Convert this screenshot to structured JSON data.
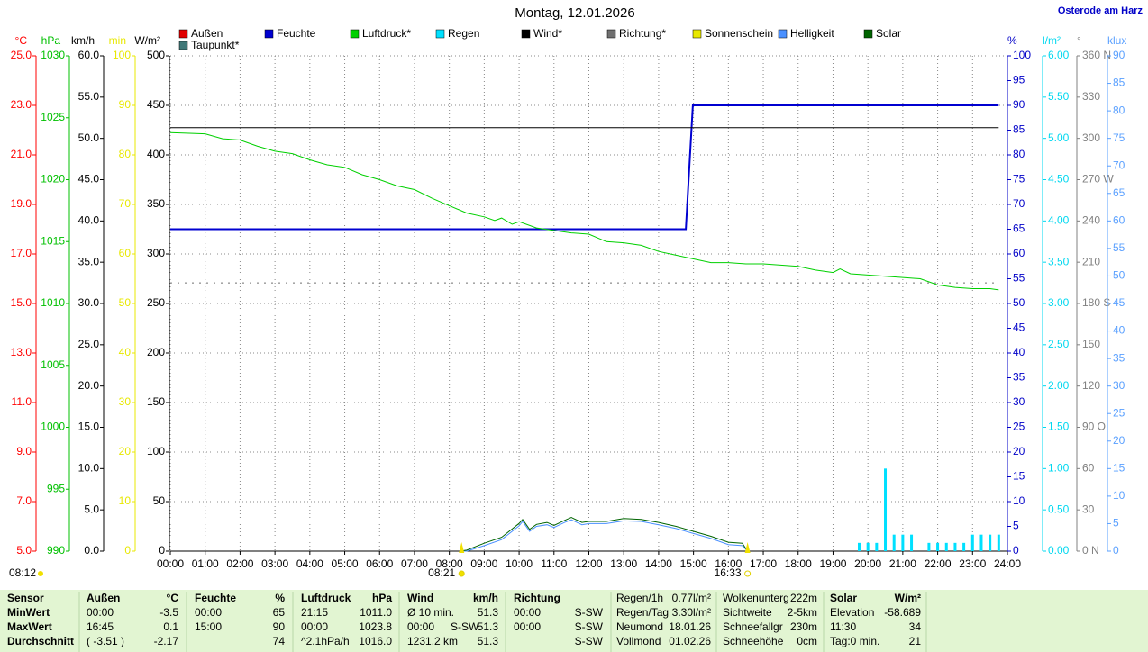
{
  "chart_data": {
    "type": "multi-axis-timeline",
    "title": "Montag, 12.01.2026",
    "location": "Osterode am Harz",
    "xlim": [
      0,
      24
    ],
    "xticks": [
      {
        "value": 0,
        "label": "00:00"
      },
      {
        "value": 1,
        "label": "01:00"
      },
      {
        "value": 2,
        "label": "02:00"
      },
      {
        "value": 3,
        "label": "03:00"
      },
      {
        "value": 4,
        "label": "04:00"
      },
      {
        "value": 5,
        "label": "05:00"
      },
      {
        "value": 6,
        "label": "06:00"
      },
      {
        "value": 7,
        "label": "07:00"
      },
      {
        "value": 8,
        "label": "08:00"
      },
      {
        "value": 9,
        "label": "09:00"
      },
      {
        "value": 10,
        "label": "10:00"
      },
      {
        "value": 11,
        "label": "11:00"
      },
      {
        "value": 12,
        "label": "12:00"
      },
      {
        "value": 13,
        "label": "13:00"
      },
      {
        "value": 14,
        "label": "14:00"
      },
      {
        "value": 15,
        "label": "15:00"
      },
      {
        "value": 16,
        "label": "16:00"
      },
      {
        "value": 17,
        "label": "17:00"
      },
      {
        "value": 18,
        "label": "18:00"
      },
      {
        "value": 19,
        "label": "19:00"
      },
      {
        "value": 20,
        "label": "20:00"
      },
      {
        "value": 21,
        "label": "21:00"
      },
      {
        "value": 22,
        "label": "22:00"
      },
      {
        "value": 23,
        "label": "23:00"
      },
      {
        "value": 24,
        "label": "24:00"
      }
    ],
    "grid": true,
    "y_axes": [
      {
        "label": "°C",
        "side": "left",
        "color": "#ff0000",
        "ylim": [
          5,
          25
        ],
        "yticks": [
          {
            "value": 5,
            "label": "5.0"
          },
          {
            "value": 7,
            "label": "7.0"
          },
          {
            "value": 9,
            "label": "9.0"
          },
          {
            "value": 11,
            "label": "11.0"
          },
          {
            "value": 13,
            "label": "13.0"
          },
          {
            "value": 15,
            "label": "15.0"
          },
          {
            "value": 17,
            "label": "17.0"
          },
          {
            "value": 19,
            "label": "19.0"
          },
          {
            "value": 21,
            "label": "21.0"
          },
          {
            "value": 23,
            "label": "23.0"
          },
          {
            "value": 25,
            "label": "25.0"
          }
        ]
      },
      {
        "label": "hPa",
        "side": "left",
        "color": "#00c000",
        "ylim": [
          990,
          1030
        ],
        "yticks": [
          990,
          995,
          1000,
          1005,
          1010,
          1015,
          1020,
          1025,
          1030
        ]
      },
      {
        "label": "km/h",
        "side": "left",
        "color": "#000000",
        "ylim": [
          0,
          60
        ],
        "yticks": [
          {
            "value": 0,
            "label": "0.0"
          },
          {
            "value": 5,
            "label": "5.0"
          },
          {
            "value": 10,
            "label": "10.0"
          },
          {
            "value": 15,
            "label": "15.0"
          },
          {
            "value": 20,
            "label": "20.0"
          },
          {
            "value": 25,
            "label": "25.0"
          },
          {
            "value": 30,
            "label": "30.0"
          },
          {
            "value": 35,
            "label": "35.0"
          },
          {
            "value": 40,
            "label": "40.0"
          },
          {
            "value": 45,
            "label": "45.0"
          },
          {
            "value": 50,
            "label": "50.0"
          },
          {
            "value": 55,
            "label": "55.0"
          },
          {
            "value": 60,
            "label": "60.0"
          }
        ]
      },
      {
        "label": "min",
        "side": "left",
        "color": "#e8e800",
        "ylim": [
          0,
          100
        ],
        "yticks": [
          0,
          10,
          20,
          30,
          40,
          50,
          60,
          70,
          80,
          90,
          100
        ]
      },
      {
        "label": "W/m²",
        "side": "left",
        "color": "#000000",
        "ylim": [
          0,
          500
        ],
        "yticks": [
          0,
          50,
          100,
          150,
          200,
          250,
          300,
          350,
          400,
          450,
          500
        ]
      },
      {
        "label": "%",
        "side": "right",
        "color": "#0000c8",
        "ylim": [
          0,
          100
        ],
        "yticks": [
          0,
          5,
          10,
          15,
          20,
          25,
          30,
          35,
          40,
          45,
          50,
          55,
          60,
          65,
          70,
          75,
          80,
          85,
          90,
          95,
          100
        ]
      },
      {
        "label": "l/m²",
        "side": "right",
        "color": "#00d8f0",
        "ylim": [
          0,
          6
        ],
        "yticks": [
          {
            "value": 0,
            "label": "0.00"
          },
          {
            "value": 0.5,
            "label": "0.50"
          },
          {
            "value": 1,
            "label": "1.00"
          },
          {
            "value": 1.5,
            "label": "1.50"
          },
          {
            "value": 2,
            "label": "2.00"
          },
          {
            "value": 2.5,
            "label": "2.50"
          },
          {
            "value": 3,
            "label": "3.00"
          },
          {
            "value": 3.5,
            "label": "3.50"
          },
          {
            "value": 4,
            "label": "4.00"
          },
          {
            "value": 4.5,
            "label": "4.50"
          },
          {
            "value": 5,
            "label": "5.00"
          },
          {
            "value": 5.5,
            "label": "5.50"
          },
          {
            "value": 6,
            "label": "6.00"
          }
        ]
      },
      {
        "label": "°",
        "side": "right",
        "color": "#808080",
        "ylim": [
          0,
          360
        ],
        "yticks": [
          {
            "value": 0,
            "label": "0 N"
          },
          30,
          60,
          {
            "value": 90,
            "label": "90 O"
          },
          120,
          150,
          {
            "value": 180,
            "label": "180 S"
          },
          210,
          240,
          {
            "value": 270,
            "label": "270 W"
          },
          300,
          330,
          {
            "value": 360,
            "label": "360 N"
          }
        ]
      },
      {
        "label": "klux",
        "side": "right",
        "color": "#5aa0ff",
        "ylim": [
          0,
          90
        ],
        "yticks": [
          0,
          5,
          10,
          15,
          20,
          25,
          30,
          35,
          40,
          45,
          50,
          55,
          60,
          65,
          70,
          75,
          80,
          85,
          90
        ]
      }
    ],
    "series": [
      {
        "name": "Außen",
        "color": "#e00000",
        "axis": 0,
        "style": "line",
        "x": [],
        "values": []
      },
      {
        "name": "Feuchte",
        "color": "#0000d0",
        "axis": 5,
        "style": "line",
        "x": [
          0,
          14.78,
          14.98,
          23.75
        ],
        "values": [
          65,
          65,
          90,
          90
        ]
      },
      {
        "name": "Luftdruck*",
        "color": "#00d000",
        "axis": 1,
        "style": "line",
        "x": [
          0,
          1,
          1.5,
          2,
          2.5,
          3,
          3.5,
          4,
          4.5,
          5,
          5.5,
          6,
          6.5,
          7,
          7.5,
          8,
          8.5,
          9,
          9.3,
          9.5,
          9.8,
          10,
          10.5,
          11,
          11.5,
          12,
          12.5,
          13,
          13.5,
          14,
          14.5,
          15,
          15.5,
          16,
          16.5,
          17,
          17.5,
          18,
          18.5,
          19,
          19.2,
          19.5,
          20,
          20.5,
          21,
          21.5,
          22,
          22.5,
          23,
          23.5,
          23.75
        ],
        "values": [
          1023.8,
          1023.7,
          1023.3,
          1023.2,
          1022.7,
          1022.3,
          1022.1,
          1021.6,
          1021.2,
          1021.0,
          1020.4,
          1020.0,
          1019.5,
          1019.2,
          1018.5,
          1017.9,
          1017.3,
          1017.0,
          1016.7,
          1016.9,
          1016.4,
          1016.6,
          1016.1,
          1015.9,
          1015.7,
          1015.6,
          1015.0,
          1014.9,
          1014.7,
          1014.2,
          1013.9,
          1013.6,
          1013.3,
          1013.3,
          1013.2,
          1013.2,
          1013.1,
          1013.0,
          1012.7,
          1012.5,
          1012.8,
          1012.4,
          1012.3,
          1012.2,
          1012.1,
          1012.0,
          1011.5,
          1011.3,
          1011.2,
          1011.2,
          1011.1
        ]
      },
      {
        "name": "Regen",
        "color": "#00e0ff",
        "axis": 6,
        "style": "bar",
        "x": [
          19.75,
          20,
          20.25,
          20.5,
          20.75,
          21,
          21.25,
          21.75,
          22,
          22.25,
          22.5,
          22.75,
          23,
          23.25,
          23.5,
          23.75
        ],
        "values": [
          0.1,
          0.1,
          0.1,
          1.0,
          0.2,
          0.2,
          0.2,
          0.1,
          0.1,
          0.1,
          0.1,
          0.1,
          0.2,
          0.2,
          0.2,
          0.2
        ]
      },
      {
        "name": "Wind*",
        "color": "#000000",
        "axis": 2,
        "style": "line",
        "x": [
          0,
          23.75
        ],
        "values": [
          51.3,
          51.3
        ]
      },
      {
        "name": "Richtung*",
        "color": "#707070",
        "axis": 7,
        "style": "dotted",
        "x": [
          0,
          23.75
        ],
        "values": [
          195,
          195
        ]
      },
      {
        "name": "Sonnenschein",
        "color": "#e8e800",
        "axis": 3,
        "style": "line",
        "x": [],
        "values": []
      },
      {
        "name": "Helligkeit",
        "color": "#4a90ff",
        "axis": 8,
        "style": "line",
        "x": [
          8.3,
          8.5,
          9,
          9.5,
          10,
          10.1,
          10.3,
          10.5,
          10.8,
          11,
          11.3,
          11.5,
          11.8,
          12,
          12.5,
          13,
          13.5,
          14,
          14.5,
          15,
          15.5,
          16,
          16.4,
          16.55
        ],
        "values": [
          0,
          0,
          1.0,
          2.1,
          4.6,
          5.4,
          3.6,
          4.5,
          4.8,
          4.3,
          5.2,
          5.7,
          4.8,
          5.0,
          5.0,
          5.5,
          5.4,
          4.8,
          4.1,
          3.2,
          2.3,
          1.2,
          1.0,
          0
        ]
      },
      {
        "name": "Solar",
        "color": "#006400",
        "axis": 4,
        "style": "line",
        "x": [
          8.3,
          8.5,
          9,
          9.5,
          10,
          10.1,
          10.3,
          10.5,
          10.8,
          11,
          11.3,
          11.5,
          11.8,
          12,
          12.5,
          13,
          13.5,
          14,
          14.5,
          15,
          15.5,
          16,
          16.4,
          16.55
        ],
        "values": [
          0,
          1,
          8,
          14,
          28,
          32,
          22,
          27,
          29,
          26,
          31,
          34,
          29,
          30,
          30,
          33,
          32,
          29,
          25,
          20,
          15,
          9,
          8,
          0
        ]
      },
      {
        "name": "Taupunkt*",
        "color": "#407878",
        "axis": 0,
        "style": "line",
        "x": [],
        "values": []
      }
    ],
    "sun_times": [
      {
        "text": "08:12"
      },
      {
        "text": "08:21",
        "x": 8.35
      },
      {
        "text": "16:33",
        "x": 16.55
      }
    ]
  },
  "table": {
    "rows": [
      [
        "Sensor",
        "Außen",
        "°C",
        "Feuchte",
        "%",
        "Luftdruck",
        "hPa",
        "Wind",
        null,
        "km/h",
        "Richtung",
        null,
        "Regen/1h",
        "0.77l/m²",
        "Wolkenunterg",
        "222m",
        "Solar",
        "W/m²"
      ],
      [
        "MinWert",
        "00:00",
        "-3.5",
        "00:00",
        "65",
        "21:15",
        "1011.0",
        "Ø 10 min.",
        null,
        "51.3",
        "00:00",
        "S-SW",
        "Regen/Tag",
        "3.30l/m²",
        "Sichtweite",
        "2-5km",
        "Elevation",
        "-58.689"
      ],
      [
        "MaxWert",
        "16:45",
        "0.1",
        "15:00",
        "90",
        "00:00",
        "1023.8",
        "00:00",
        "S-SW",
        "51.3",
        "00:00",
        "S-SW",
        "Neumond",
        "18.01.26",
        "Schneefallgr",
        "230m",
        "11:30",
        "34"
      ],
      [
        "Durchschnitt",
        "( -3.51 )",
        "-2.17",
        null,
        "74",
        "^2.1hPa/h",
        "1016.0",
        "1231.2 km",
        null,
        "51.3",
        null,
        "S-SW",
        "Vollmond",
        "01.02.26",
        "Schneehöhe",
        "0cm",
        "Tag:0 min.",
        "21"
      ]
    ]
  }
}
